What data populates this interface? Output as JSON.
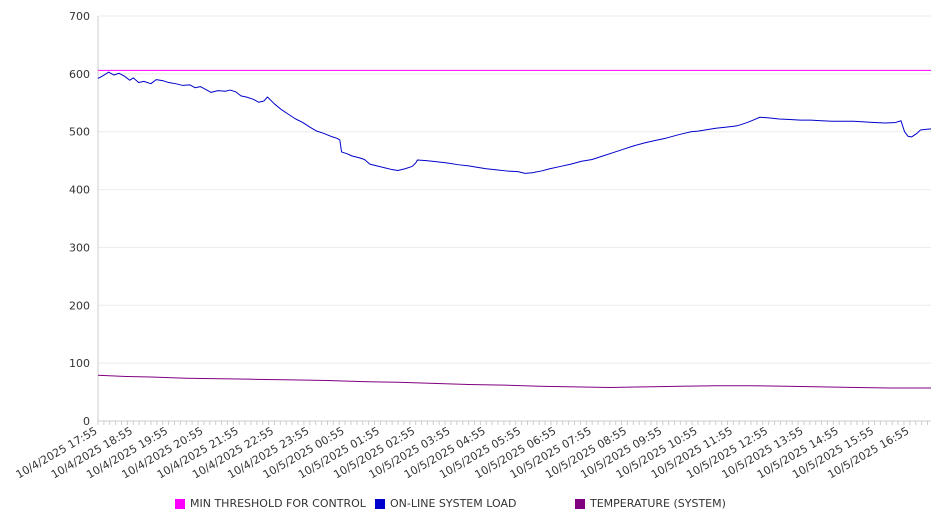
{
  "chart_data": {
    "type": "line",
    "ylim": [
      0,
      700
    ],
    "yticks": [
      0,
      100,
      200,
      300,
      400,
      500,
      600,
      700
    ],
    "grid": true,
    "legend_position": "bottom",
    "x_tick_labels": [
      "10/4/2025 17:55",
      "10/4/2025 18:55",
      "10/4/2025 19:55",
      "10/4/2025 20:55",
      "10/4/2025 21:55",
      "10/4/2025 22:55",
      "10/4/2025 23:55",
      "10/5/2025 00:55",
      "10/5/2025 01:55",
      "10/5/2025 02:55",
      "10/5/2025 03:55",
      "10/5/2025 04:55",
      "10/5/2025 05:55",
      "10/5/2025 06:55",
      "10/5/2025 07:55",
      "10/5/2025 08:55",
      "10/5/2025 09:55",
      "10/5/2025 10:55",
      "10/5/2025 11:55",
      "10/5/2025 12:55",
      "10/5/2025 13:55",
      "10/5/2025 14:55",
      "10/5/2025 15:55",
      "10/5/2025 16:55"
    ],
    "x_range_hours": [
      0,
      23.6
    ],
    "series": [
      {
        "name": "MIN THRESHOLD FOR CONTROL",
        "color": "#ff00ff",
        "points": [
          [
            0,
            606
          ],
          [
            23.6,
            606
          ]
        ]
      },
      {
        "name": "ON-LINE SYSTEM LOAD",
        "color": "#0000cc",
        "points": [
          [
            0,
            592
          ],
          [
            0.15,
            597
          ],
          [
            0.3,
            603
          ],
          [
            0.45,
            598
          ],
          [
            0.6,
            601
          ],
          [
            0.75,
            596
          ],
          [
            0.9,
            589
          ],
          [
            1.0,
            593
          ],
          [
            1.15,
            585
          ],
          [
            1.3,
            587
          ],
          [
            1.5,
            583
          ],
          [
            1.65,
            590
          ],
          [
            1.85,
            588
          ],
          [
            2.0,
            585
          ],
          [
            2.2,
            583
          ],
          [
            2.4,
            580
          ],
          [
            2.6,
            581
          ],
          [
            2.75,
            576
          ],
          [
            2.9,
            578
          ],
          [
            3.05,
            573
          ],
          [
            3.2,
            568
          ],
          [
            3.4,
            571
          ],
          [
            3.6,
            570
          ],
          [
            3.75,
            572
          ],
          [
            3.9,
            569
          ],
          [
            4.05,
            562
          ],
          [
            4.2,
            560
          ],
          [
            4.4,
            556
          ],
          [
            4.55,
            551
          ],
          [
            4.7,
            553
          ],
          [
            4.8,
            560
          ],
          [
            5.0,
            548
          ],
          [
            5.2,
            538
          ],
          [
            5.4,
            530
          ],
          [
            5.6,
            522
          ],
          [
            5.8,
            516
          ],
          [
            6.0,
            508
          ],
          [
            6.2,
            501
          ],
          [
            6.4,
            497
          ],
          [
            6.6,
            492
          ],
          [
            6.75,
            489
          ],
          [
            6.85,
            486
          ],
          [
            6.9,
            465
          ],
          [
            7.05,
            462
          ],
          [
            7.2,
            458
          ],
          [
            7.4,
            455
          ],
          [
            7.55,
            452
          ],
          [
            7.7,
            444
          ],
          [
            7.9,
            441
          ],
          [
            8.1,
            438
          ],
          [
            8.3,
            435
          ],
          [
            8.5,
            433
          ],
          [
            8.7,
            436
          ],
          [
            8.9,
            440
          ],
          [
            9.0,
            446
          ],
          [
            9.05,
            451
          ],
          [
            9.3,
            450
          ],
          [
            9.6,
            448
          ],
          [
            9.9,
            446
          ],
          [
            10.2,
            443
          ],
          [
            10.5,
            441
          ],
          [
            10.8,
            438
          ],
          [
            11.0,
            436
          ],
          [
            11.3,
            434
          ],
          [
            11.6,
            432
          ],
          [
            11.9,
            431
          ],
          [
            12.1,
            428
          ],
          [
            12.3,
            429
          ],
          [
            12.55,
            432
          ],
          [
            12.8,
            436
          ],
          [
            13.1,
            440
          ],
          [
            13.4,
            444
          ],
          [
            13.7,
            449
          ],
          [
            14.0,
            452
          ],
          [
            14.3,
            458
          ],
          [
            14.6,
            464
          ],
          [
            14.9,
            470
          ],
          [
            15.2,
            476
          ],
          [
            15.5,
            481
          ],
          [
            15.8,
            485
          ],
          [
            16.1,
            489
          ],
          [
            16.4,
            494
          ],
          [
            16.6,
            497
          ],
          [
            16.8,
            500
          ],
          [
            17.0,
            501
          ],
          [
            17.2,
            503
          ],
          [
            17.5,
            506
          ],
          [
            17.8,
            508
          ],
          [
            18.1,
            510
          ],
          [
            18.4,
            516
          ],
          [
            18.6,
            521
          ],
          [
            18.75,
            525
          ],
          [
            19.0,
            524
          ],
          [
            19.3,
            522
          ],
          [
            19.6,
            521
          ],
          [
            19.9,
            520
          ],
          [
            20.2,
            520
          ],
          [
            20.5,
            519
          ],
          [
            20.8,
            518
          ],
          [
            21.1,
            518
          ],
          [
            21.4,
            518
          ],
          [
            21.7,
            517
          ],
          [
            22.0,
            516
          ],
          [
            22.3,
            515
          ],
          [
            22.6,
            516
          ],
          [
            22.75,
            519
          ],
          [
            22.85,
            500
          ],
          [
            22.95,
            492
          ],
          [
            23.05,
            491
          ],
          [
            23.2,
            497
          ],
          [
            23.3,
            503
          ],
          [
            23.45,
            504
          ],
          [
            23.6,
            505
          ]
        ]
      },
      {
        "name": "TEMPERATURE (SYSTEM)",
        "color": "#800080",
        "points": [
          [
            0,
            79
          ],
          [
            0.8,
            77
          ],
          [
            1.5,
            76
          ],
          [
            2.5,
            74
          ],
          [
            3.5,
            73
          ],
          [
            4.5,
            72
          ],
          [
            5.5,
            71
          ],
          [
            6.5,
            70
          ],
          [
            7.5,
            68
          ],
          [
            8.5,
            67
          ],
          [
            9.5,
            65
          ],
          [
            10.5,
            63
          ],
          [
            11.5,
            62
          ],
          [
            12.5,
            60
          ],
          [
            13.5,
            59
          ],
          [
            14.5,
            58
          ],
          [
            15.5,
            59
          ],
          [
            16.5,
            60
          ],
          [
            17.5,
            61
          ],
          [
            18.5,
            61
          ],
          [
            19.5,
            60
          ],
          [
            20.5,
            59
          ],
          [
            21.5,
            58
          ],
          [
            22.5,
            57
          ],
          [
            23.6,
            57
          ]
        ]
      }
    ]
  }
}
